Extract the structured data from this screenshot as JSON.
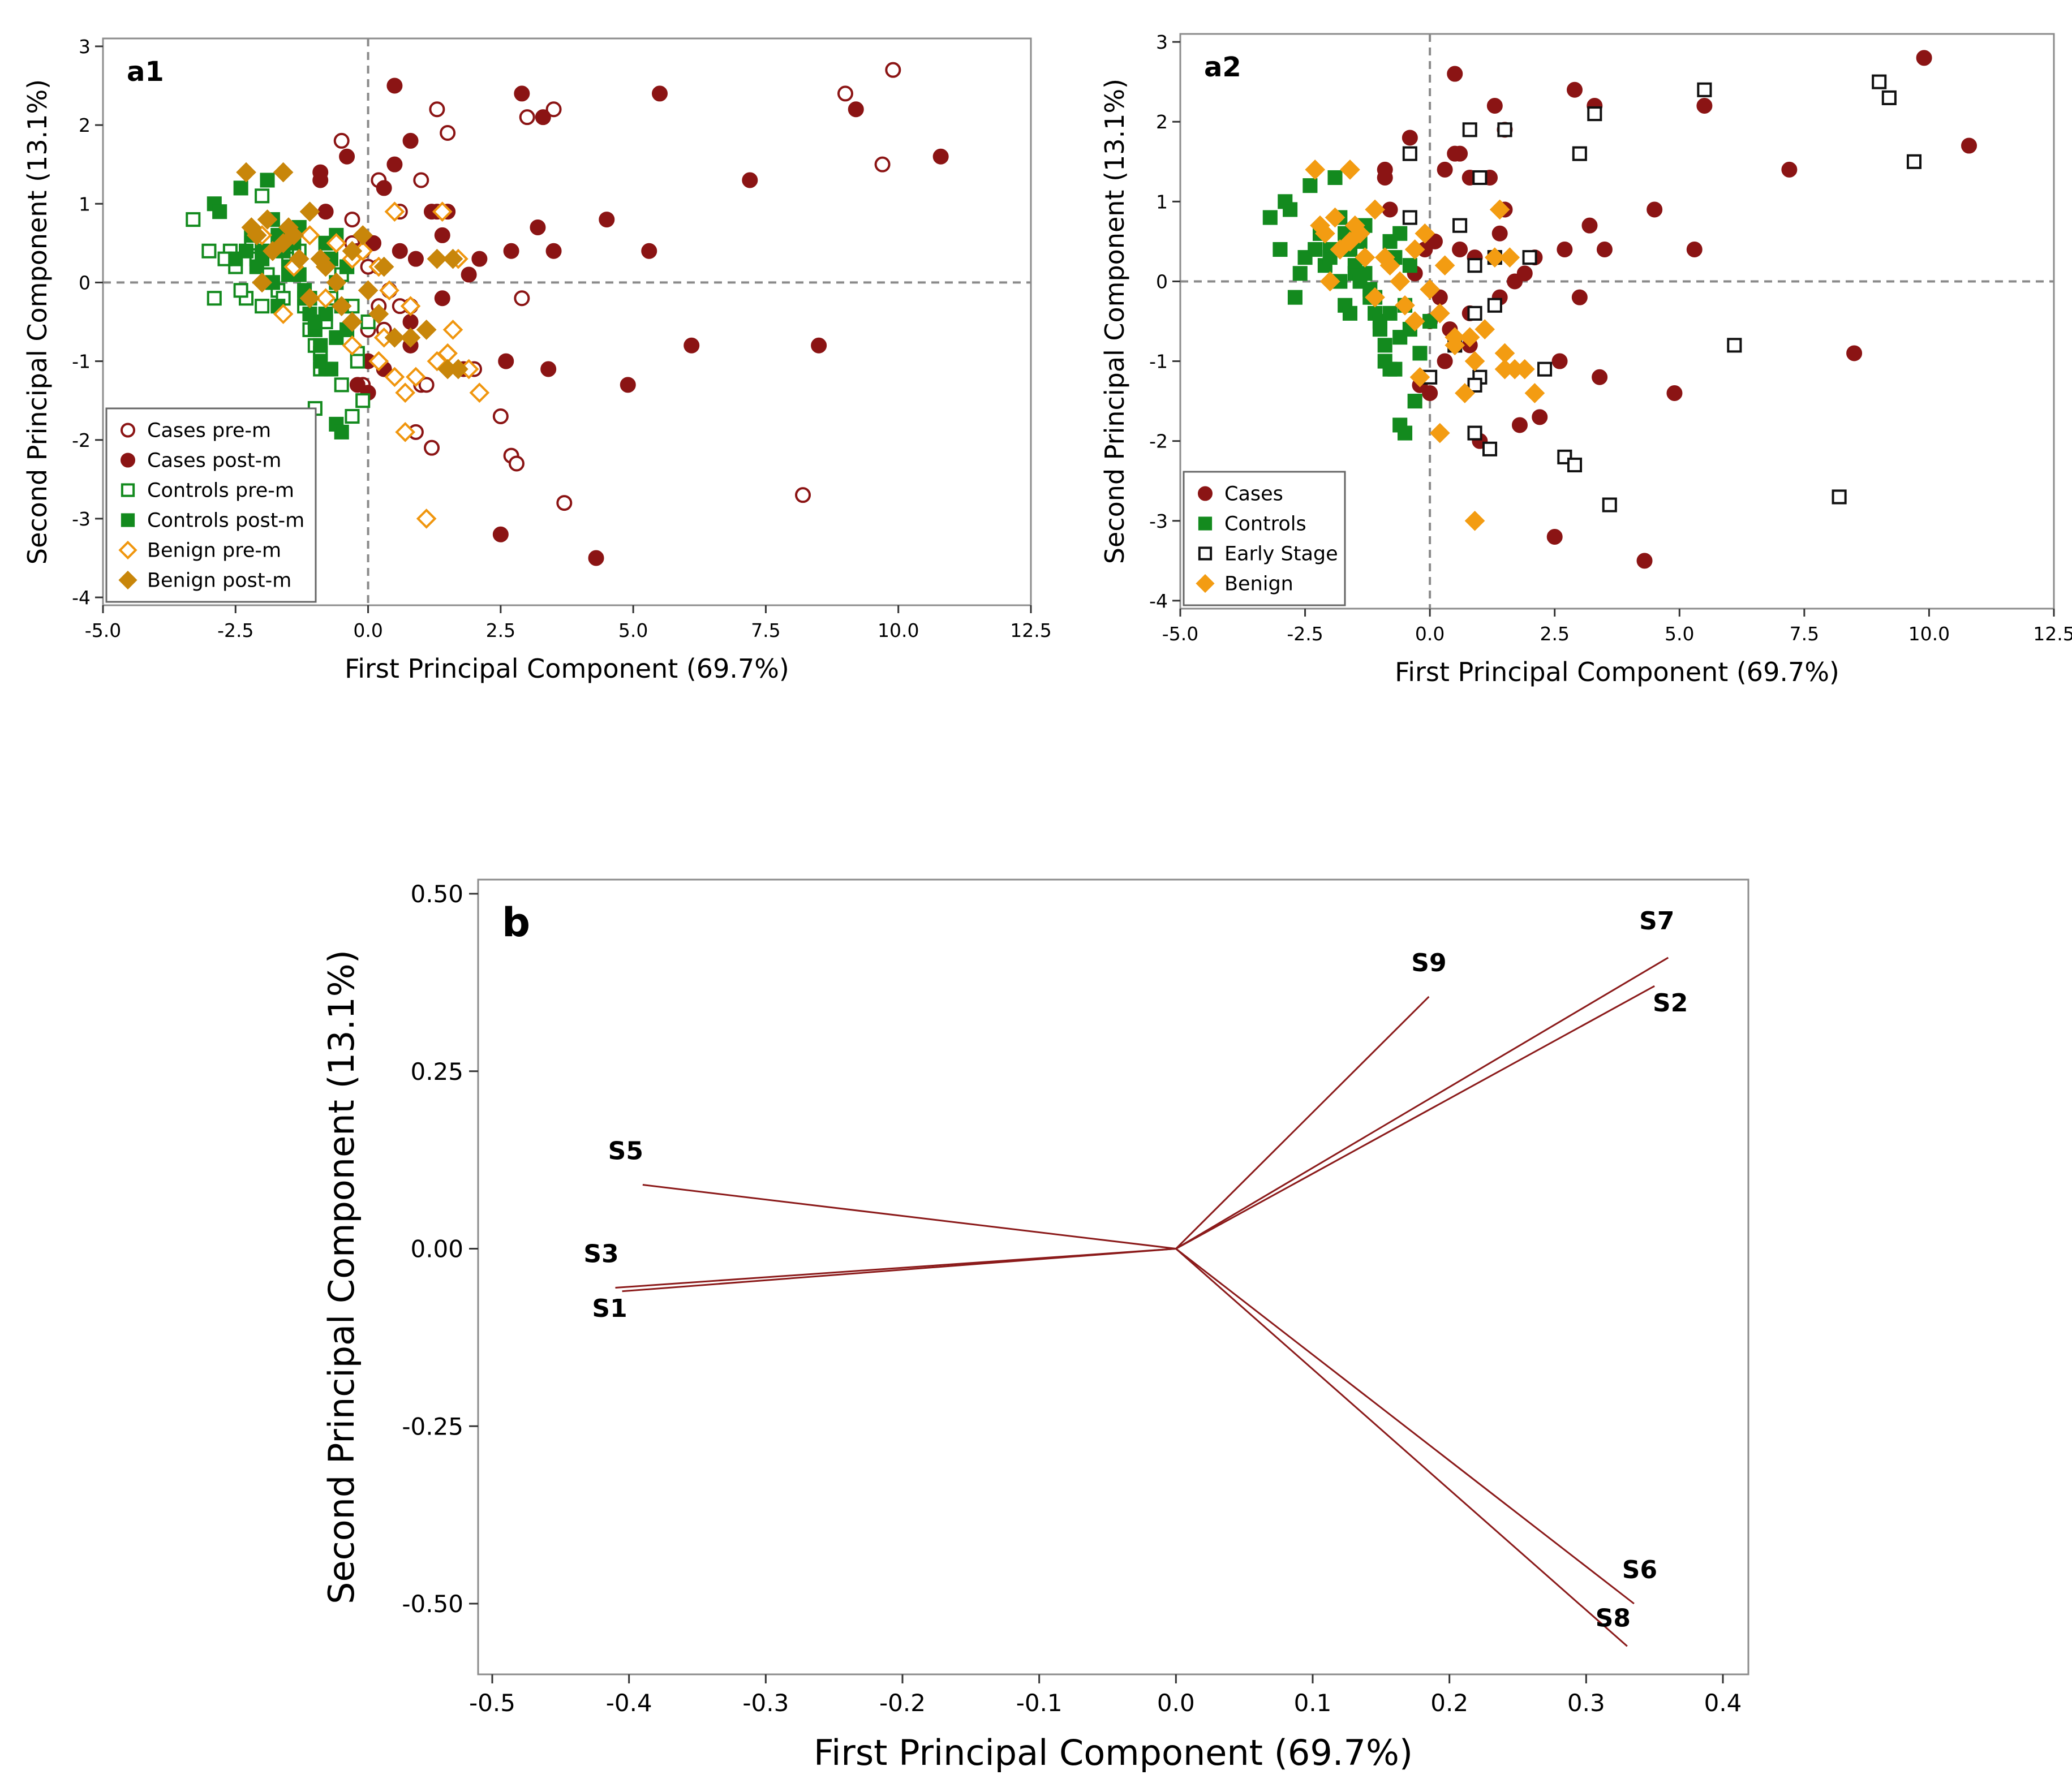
{
  "colors": {
    "cases": "#8b1414",
    "controls": "#138a1e",
    "benign_pre": "#f0960e",
    "benign_post": "#c8860a",
    "benign": "#f39c12",
    "early": "#111111",
    "vector": "#8b1a1a",
    "ref_line": "#8a8a8a",
    "frame": "#8c8c8c"
  },
  "chart_data": [
    {
      "id": "a1",
      "type": "scatter",
      "panel_label": "a1",
      "xlabel": "First Principal Component (69.7%)",
      "ylabel": "Second Principal Component (13.1%)",
      "xlim": [
        -5.0,
        12.5
      ],
      "ylim": [
        -4.1,
        3.1
      ],
      "xticks": [
        -5.0,
        -2.5,
        0.0,
        2.5,
        5.0,
        7.5,
        10.0,
        12.5
      ],
      "xtick_labels": [
        "-5.0",
        "-2.5",
        "0.0",
        "2.5",
        "5.0",
        "7.5",
        "10.0",
        "12.5"
      ],
      "yticks": [
        -4,
        -3,
        -2,
        -1,
        0,
        1,
        2,
        3
      ],
      "ytick_labels": [
        "-4",
        "-3",
        "-2",
        "-1",
        "0",
        "1",
        "2",
        "3"
      ],
      "legend_position": "bottom-left",
      "series": [
        {
          "name": "Cases pre-m",
          "marker": "circle-open",
          "color": "#8b1414",
          "x": [
            9.9,
            9.0,
            9.7,
            1.3,
            1.5,
            -0.5,
            0.2,
            1.0,
            -0.3,
            0.6,
            1.3,
            3.5,
            3.0,
            -0.3,
            0.4,
            0.0,
            0.8,
            0.8,
            0.2,
            -0.1,
            1.0,
            1.1,
            2.0,
            2.9,
            2.5,
            0.9,
            1.2,
            2.7,
            2.8,
            3.7,
            8.2,
            0.3,
            0.6,
            0.0,
            -0.2,
            0.1
          ],
          "y": [
            2.7,
            2.4,
            1.5,
            2.2,
            1.9,
            1.8,
            1.3,
            1.3,
            0.8,
            0.9,
            0.9,
            2.2,
            2.1,
            0.5,
            -0.1,
            0.2,
            -0.3,
            -0.8,
            -0.3,
            -1.3,
            -1.3,
            -1.3,
            -1.1,
            -0.2,
            -1.7,
            -1.9,
            -2.1,
            -2.2,
            -2.3,
            -2.8,
            -2.7,
            -0.6,
            -0.3,
            -0.6,
            0.4,
            0.5
          ]
        },
        {
          "name": "Cases post-m",
          "marker": "circle",
          "color": "#8b1414",
          "x": [
            0.5,
            2.9,
            3.3,
            5.5,
            9.2,
            10.8,
            7.2,
            4.5,
            3.2,
            5.3,
            3.5,
            2.7,
            2.1,
            1.9,
            1.5,
            1.2,
            0.8,
            0.5,
            0.3,
            0.1,
            -0.1,
            -0.9,
            -0.9,
            -0.8,
            -0.4,
            0.6,
            0.9,
            1.4,
            0.8,
            1.4,
            0.0,
            -0.2,
            0.3,
            0.8,
            2.6,
            3.4,
            4.9,
            6.1,
            8.5,
            2.5,
            4.3,
            0.0,
            1.8,
            0.4,
            0.2
          ],
          "y": [
            2.5,
            2.4,
            2.1,
            2.4,
            2.2,
            1.6,
            1.3,
            0.8,
            0.7,
            0.4,
            0.4,
            0.4,
            0.3,
            0.1,
            0.9,
            0.9,
            1.8,
            1.5,
            1.2,
            0.5,
            0.4,
            1.4,
            1.3,
            0.9,
            1.6,
            0.4,
            0.3,
            0.6,
            -0.5,
            -0.2,
            -1.0,
            -1.3,
            -1.1,
            -0.8,
            -1.0,
            -1.1,
            -1.3,
            -0.8,
            -0.8,
            -3.2,
            -3.5,
            -1.4,
            -1.1,
            -0.1,
            0.2
          ]
        },
        {
          "name": "Controls pre-m",
          "marker": "square-open",
          "color": "#138a1e",
          "x": [
            -3.3,
            -3.0,
            -2.9,
            -2.6,
            -2.5,
            -2.3,
            -2.2,
            -2.1,
            -2.0,
            -1.9,
            -1.7,
            -1.5,
            -1.4,
            -1.3,
            -1.2,
            -1.1,
            -1.0,
            -0.9,
            -0.8,
            -0.7,
            -0.6,
            -0.5,
            -0.4,
            -0.3,
            -0.2,
            -0.1,
            0.0,
            -2.4,
            -1.8,
            -1.6,
            -1.0,
            -0.9,
            -0.3,
            -0.2,
            -0.5,
            -2.7,
            -2.0
          ],
          "y": [
            0.8,
            0.4,
            -0.2,
            0.4,
            0.2,
            -0.2,
            0.5,
            0.3,
            1.1,
            0.1,
            -0.1,
            0.3,
            0.2,
            0.4,
            -0.3,
            -0.6,
            -0.8,
            -0.9,
            -0.5,
            -0.2,
            0.0,
            0.1,
            0.2,
            -0.3,
            -0.9,
            -1.5,
            -0.5,
            -0.1,
            0.0,
            -0.2,
            -1.6,
            -1.1,
            -1.7,
            -1.0,
            -1.3,
            0.3,
            -0.3
          ]
        },
        {
          "name": "Controls post-m",
          "marker": "square",
          "color": "#138a1e",
          "x": [
            -2.9,
            -2.8,
            -2.4,
            -2.2,
            -2.0,
            -1.9,
            -1.8,
            -1.7,
            -1.6,
            -1.5,
            -1.4,
            -1.3,
            -1.2,
            -1.1,
            -1.0,
            -0.9,
            -0.8,
            -0.7,
            -0.6,
            -0.5,
            -0.4,
            -2.5,
            -2.3,
            -2.1,
            -1.8,
            -1.5,
            -1.2,
            -1.0,
            -0.8,
            -0.6,
            -0.6,
            -0.7,
            -0.5,
            -0.8,
            -1.3,
            -0.4,
            -1.7,
            -2.0,
            -2.2,
            -1.1,
            -0.9
          ],
          "y": [
            1.0,
            0.9,
            1.2,
            0.6,
            0.4,
            1.3,
            0.8,
            0.6,
            0.4,
            0.2,
            0.5,
            0.1,
            -0.2,
            -0.4,
            -0.6,
            -0.8,
            -1.1,
            -1.1,
            -1.8,
            -1.9,
            -0.6,
            0.3,
            0.4,
            0.2,
            0.0,
            0.1,
            -0.1,
            -0.5,
            -0.4,
            -0.7,
            0.6,
            0.3,
            -0.3,
            0.5,
            0.7,
            0.2,
            -0.3,
            0.3,
            0.6,
            -0.2,
            -1.0
          ]
        },
        {
          "name": "Benign pre-m",
          "marker": "diamond-open",
          "color": "#f0960e",
          "x": [
            0.5,
            1.4,
            1.7,
            -1.1,
            -0.6,
            -0.3,
            -0.1,
            0.2,
            0.4,
            0.8,
            1.1,
            1.6,
            1.9,
            2.1,
            0.7,
            0.3,
            -0.3,
            0.2,
            0.5,
            0.9,
            0.7,
            1.3,
            -2.0,
            -1.4,
            -0.8,
            -1.6,
            1.1,
            1.5
          ],
          "y": [
            0.9,
            0.9,
            0.3,
            0.6,
            0.5,
            0.3,
            0.4,
            0.2,
            -0.1,
            -0.3,
            -0.6,
            -0.6,
            -1.1,
            -1.4,
            -1.4,
            -0.7,
            -0.8,
            -1.0,
            -1.2,
            -1.2,
            -1.9,
            -1.0,
            0.6,
            0.2,
            -0.2,
            -0.4,
            -3.0,
            -0.9
          ]
        },
        {
          "name": "Benign post-m",
          "marker": "diamond",
          "color": "#c8860a",
          "x": [
            -2.3,
            -1.6,
            -1.1,
            -1.5,
            -2.1,
            -1.9,
            -1.6,
            -1.3,
            -0.9,
            -0.6,
            -0.3,
            -0.1,
            0.3,
            0.5,
            0.8,
            1.1,
            1.5,
            1.7,
            -2.0,
            -1.1,
            -0.5,
            0.0,
            0.2,
            -0.3,
            -1.8,
            -0.8,
            -1.4,
            1.3,
            1.6,
            -2.2
          ],
          "y": [
            1.4,
            1.4,
            0.9,
            0.7,
            0.6,
            0.8,
            0.5,
            0.3,
            0.3,
            0.0,
            0.4,
            0.6,
            0.2,
            -0.7,
            -0.7,
            -0.6,
            -1.1,
            -1.1,
            0.0,
            -0.2,
            -0.3,
            -0.1,
            -0.4,
            -0.5,
            0.4,
            0.2,
            0.6,
            0.3,
            0.3,
            0.7
          ]
        }
      ]
    },
    {
      "id": "a2",
      "type": "scatter",
      "panel_label": "a2",
      "xlabel": "First Principal Component (69.7%)",
      "ylabel": "Second Principal Component (13.1%)",
      "xlim": [
        -5.0,
        12.5
      ],
      "ylim": [
        -4.1,
        3.1
      ],
      "xticks": [
        -5.0,
        -2.5,
        0.0,
        2.5,
        5.0,
        7.5,
        10.0,
        12.5
      ],
      "xtick_labels": [
        "-5.0",
        "-2.5",
        "0.0",
        "2.5",
        "5.0",
        "7.5",
        "10.0",
        "12.5"
      ],
      "yticks": [
        -4,
        -3,
        -2,
        -1,
        0,
        1,
        2,
        3
      ],
      "ytick_labels": [
        "-4",
        "-3",
        "-2",
        "-1",
        "0",
        "1",
        "2",
        "3"
      ],
      "legend_position": "bottom-left",
      "series": [
        {
          "name": "Cases",
          "marker": "circle",
          "color": "#8b1414",
          "x": [
            0.5,
            2.9,
            3.3,
            5.5,
            9.9,
            10.8,
            7.2,
            4.5,
            3.2,
            5.3,
            3.5,
            2.7,
            2.1,
            1.9,
            1.5,
            1.2,
            0.8,
            0.5,
            0.3,
            0.1,
            -0.1,
            -0.9,
            -0.9,
            -0.8,
            -0.4,
            0.6,
            0.9,
            1.4,
            0.8,
            1.4,
            0.0,
            -0.2,
            0.3,
            0.8,
            2.6,
            3.4,
            4.9,
            8.5,
            2.5,
            4.3,
            0.0,
            1.8,
            1.3,
            1.5,
            1.0,
            0.4,
            0.2,
            2.2,
            1.7,
            3.0,
            -0.3,
            0.6
          ],
          "y": [
            2.6,
            2.4,
            2.2,
            2.2,
            2.8,
            1.7,
            1.4,
            0.9,
            0.7,
            0.4,
            0.4,
            0.4,
            0.3,
            0.1,
            0.9,
            1.3,
            1.3,
            1.6,
            1.4,
            0.5,
            0.4,
            1.4,
            1.3,
            0.9,
            1.8,
            0.4,
            0.3,
            0.6,
            -0.4,
            -0.2,
            -0.5,
            -1.3,
            -1.0,
            -0.8,
            -1.0,
            -1.2,
            -1.4,
            -0.9,
            -3.2,
            -3.5,
            -1.4,
            -1.8,
            2.2,
            1.9,
            -2.0,
            -0.6,
            -0.2,
            -1.7,
            0.0,
            -0.2,
            0.1,
            1.6
          ]
        },
        {
          "name": "Controls",
          "marker": "square",
          "color": "#138a1e",
          "x": [
            -3.2,
            -2.9,
            -2.8,
            -2.4,
            -2.2,
            -2.0,
            -1.9,
            -1.8,
            -1.7,
            -1.6,
            -1.5,
            -1.4,
            -1.3,
            -1.2,
            -1.1,
            -1.0,
            -0.9,
            -0.8,
            -0.7,
            -0.6,
            -0.5,
            -0.4,
            -2.5,
            -2.3,
            -2.1,
            -1.8,
            -1.5,
            -1.2,
            -1.0,
            -0.8,
            -0.6,
            -0.6,
            -0.7,
            -0.5,
            -0.8,
            -1.3,
            -0.4,
            -1.7,
            -2.0,
            -2.2,
            -1.1,
            -0.9,
            -3.0,
            -2.7,
            -2.6,
            -1.6,
            -1.4,
            -0.3,
            -0.2,
            0.0
          ],
          "y": [
            0.8,
            1.0,
            0.9,
            1.2,
            0.6,
            0.4,
            1.3,
            0.8,
            0.6,
            0.4,
            0.2,
            0.5,
            0.1,
            -0.2,
            -0.4,
            -0.6,
            -0.8,
            -1.1,
            -1.1,
            -1.8,
            -1.9,
            -0.6,
            0.3,
            0.4,
            0.2,
            0.0,
            0.1,
            -0.1,
            -0.5,
            -0.4,
            -0.7,
            0.6,
            0.3,
            -0.3,
            0.5,
            0.7,
            0.2,
            -0.3,
            0.3,
            0.6,
            -0.2,
            -1.0,
            0.4,
            -0.2,
            0.1,
            -0.4,
            0.0,
            -1.5,
            -0.9,
            -0.5
          ]
        },
        {
          "name": "Early Stage",
          "marker": "square-open",
          "color": "#111111",
          "x": [
            -0.4,
            0.8,
            1.5,
            3.3,
            3.0,
            5.5,
            9.0,
            9.2,
            9.7,
            -0.4,
            1.0,
            1.3,
            0.6,
            0.9,
            2.0,
            1.3,
            0.9,
            0.5,
            1.0,
            2.3,
            0.9,
            6.1,
            1.2,
            2.7,
            2.9,
            3.6,
            8.2,
            0.0,
            0.9
          ],
          "y": [
            1.6,
            1.9,
            1.9,
            2.1,
            1.6,
            2.4,
            2.5,
            2.3,
            1.5,
            0.8,
            1.3,
            0.3,
            0.7,
            0.2,
            0.3,
            -0.3,
            -0.4,
            -0.8,
            -1.2,
            -1.1,
            -1.3,
            -0.8,
            -2.1,
            -2.2,
            -2.3,
            -2.8,
            -2.7,
            -1.2,
            -1.9
          ]
        },
        {
          "name": "Benign",
          "marker": "diamond",
          "color": "#f39c12",
          "x": [
            -2.3,
            -1.6,
            -1.1,
            -1.5,
            -2.1,
            -1.9,
            -1.6,
            -1.3,
            -0.9,
            -0.6,
            -0.3,
            -0.1,
            0.3,
            0.5,
            0.8,
            1.1,
            1.5,
            1.7,
            -2.0,
            -1.1,
            -0.5,
            0.0,
            0.2,
            -0.3,
            -1.8,
            -0.8,
            -1.4,
            1.3,
            1.6,
            -2.2,
            0.5,
            1.4,
            1.9,
            2.1,
            0.7,
            0.9,
            0.2,
            0.9,
            -0.2,
            1.5
          ],
          "y": [
            1.4,
            1.4,
            0.9,
            0.7,
            0.6,
            0.8,
            0.5,
            0.3,
            0.3,
            0.0,
            0.4,
            0.6,
            0.2,
            -0.7,
            -0.7,
            -0.6,
            -1.1,
            -1.1,
            0.0,
            -0.2,
            -0.3,
            -0.1,
            -0.4,
            -0.5,
            0.4,
            0.2,
            0.6,
            0.3,
            0.3,
            0.7,
            -0.8,
            0.9,
            -1.1,
            -1.4,
            -1.4,
            -3.0,
            -1.9,
            -1.0,
            -1.2,
            -0.9
          ]
        }
      ]
    },
    {
      "id": "b",
      "type": "biplot-loadings",
      "panel_label": "b",
      "xlabel": "First Principal Component (69.7%)",
      "ylabel": "Second Principal Component (13.1%)",
      "xlim": [
        -0.5,
        0.4
      ],
      "ylim": [
        -0.6,
        0.52
      ],
      "xticks": [
        -0.5,
        -0.4,
        -0.3,
        -0.2,
        -0.1,
        0.0,
        0.1,
        0.2,
        0.3,
        0.4
      ],
      "xtick_labels": [
        "-0.5",
        "-0.4",
        "-0.3",
        "-0.2",
        "-0.1",
        "0.0",
        "0.1",
        "0.2",
        "0.3",
        "0.4"
      ],
      "yticks": [
        -0.5,
        -0.25,
        0.0,
        0.25,
        0.5
      ],
      "ytick_labels": [
        "-0.50",
        "-0.25",
        "0.00",
        "0.25",
        "0.50"
      ],
      "vectors": [
        {
          "name": "S7",
          "x": 0.36,
          "y": 0.41
        },
        {
          "name": "S2",
          "x": 0.35,
          "y": 0.37
        },
        {
          "name": "S9",
          "x": 0.185,
          "y": 0.355
        },
        {
          "name": "S5",
          "x": -0.39,
          "y": 0.09
        },
        {
          "name": "S3",
          "x": -0.41,
          "y": -0.055
        },
        {
          "name": "S1",
          "x": -0.405,
          "y": -0.06
        },
        {
          "name": "S6",
          "x": 0.335,
          "y": -0.5
        },
        {
          "name": "S8",
          "x": 0.33,
          "y": -0.56
        }
      ]
    }
  ]
}
